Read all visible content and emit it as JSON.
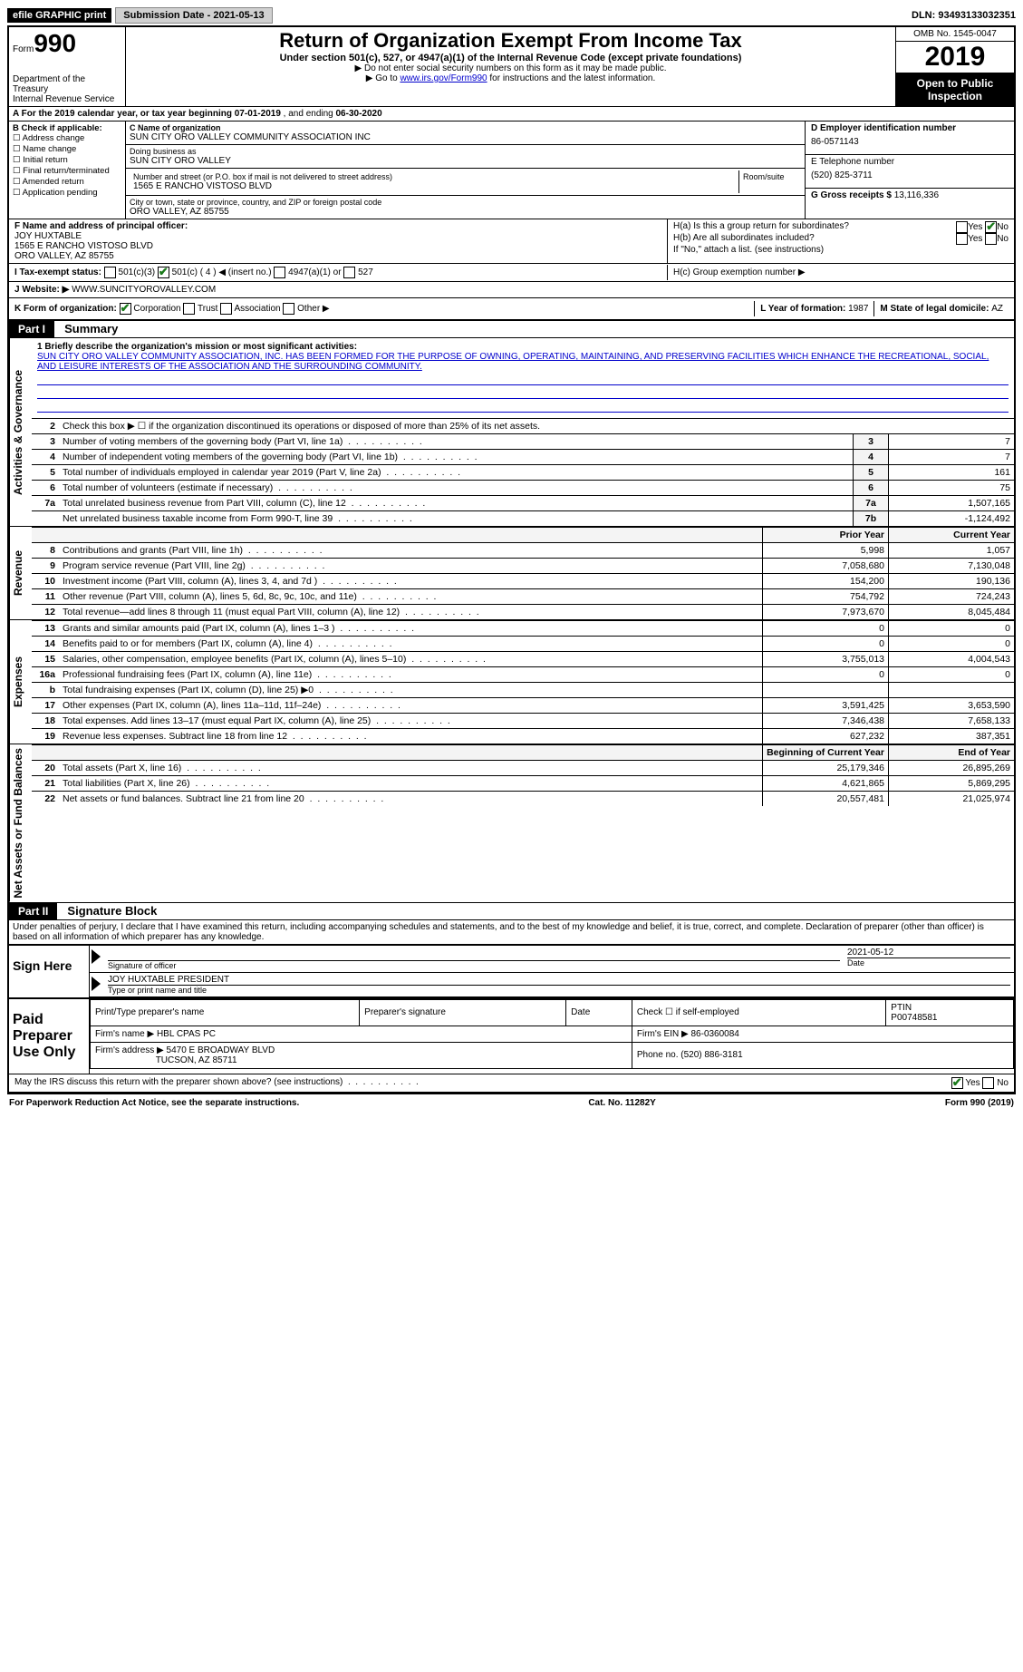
{
  "topbar": {
    "efile": "efile GRAPHIC print",
    "submission_label": "Submission Date - ",
    "submission_date": "2021-05-13",
    "dln_label": "DLN: ",
    "dln": "93493133032351"
  },
  "header": {
    "form_word": "Form",
    "form_num": "990",
    "dept": "Department of the Treasury\nInternal Revenue Service",
    "title": "Return of Organization Exempt From Income Tax",
    "subtitle": "Under section 501(c), 527, or 4947(a)(1) of the Internal Revenue Code (except private foundations)",
    "line1": "▶ Do not enter social security numbers on this form as it may be made public.",
    "line2a": "▶ Go to ",
    "line2_link": "www.irs.gov/Form990",
    "line2b": " for instructions and the latest information.",
    "omb": "OMB No. 1545-0047",
    "year": "2019",
    "open": "Open to Public Inspection"
  },
  "rowA": {
    "prefix": "A   For the 2019 calendar year, or tax year beginning ",
    "begin": "07-01-2019",
    "mid": "   , and ending ",
    "end": "06-30-2020"
  },
  "colB": {
    "title": "B Check if applicable:",
    "items": [
      "Address change",
      "Name change",
      "Initial return",
      "Final return/terminated",
      "Amended return",
      "Application pending"
    ]
  },
  "colC": {
    "name_lbl": "C Name of organization",
    "name": "SUN CITY ORO VALLEY COMMUNITY ASSOCIATION INC",
    "dba_lbl": "Doing business as",
    "dba": "SUN CITY ORO VALLEY",
    "addr_lbl": "Number and street (or P.O. box if mail is not delivered to street address)",
    "addr": "1565 E RANCHO VISTOSO BLVD",
    "room_lbl": "Room/suite",
    "city_lbl": "City or town, state or province, country, and ZIP or foreign postal code",
    "city": "ORO VALLEY, AZ  85755"
  },
  "colDE": {
    "d_lbl": "D Employer identification number",
    "ein": "86-0571143",
    "e_lbl": "E Telephone number",
    "phone": "(520) 825-3711",
    "g_lbl": "G Gross receipts $ ",
    "gross": "13,116,336"
  },
  "rowF": {
    "f_lbl": "F Name and address of principal officer:",
    "name": "JOY HUXTABLE",
    "addr1": "1565 E RANCHO VISTOSO BLVD",
    "addr2": "ORO VALLEY, AZ  85755",
    "ha": "H(a)  Is this a group return for subordinates?",
    "hb": "H(b)  Are all subordinates included?",
    "hb_note": "If \"No,\" attach a list. (see instructions)",
    "yes": "Yes",
    "no": "No"
  },
  "rowI": {
    "lbl": "I   Tax-exempt status:",
    "o1": "501(c)(3)",
    "o2_a": "501(c) ( ",
    "o2_num": "4",
    "o2_b": " ) ◀ (insert no.)",
    "o3": "4947(a)(1) or",
    "o4": "527",
    "hc": "H(c)  Group exemption number ▶"
  },
  "rowJ": {
    "lbl": "J   Website: ▶ ",
    "val": "WWW.SUNCITYOROVALLEY.COM"
  },
  "rowK": {
    "lbl": "K Form of organization:",
    "o1": "Corporation",
    "o2": "Trust",
    "o3": "Association",
    "o4": "Other ▶",
    "l_lbl": "L Year of formation: ",
    "l_val": "1987",
    "m_lbl": "M State of legal domicile: ",
    "m_val": "AZ"
  },
  "part1_hdr": "Part I",
  "part1_title": "Summary",
  "govern": {
    "label": "Activities & Governance",
    "l1_lbl": "1   Briefly describe the organization's mission or most significant activities:",
    "l1_txt": "SUN CITY ORO VALLEY COMMUNITY ASSOCIATION, INC. HAS BEEN FORMED FOR THE PURPOSE OF OWNING, OPERATING, MAINTAINING, AND PRESERVING FACILITIES WHICH ENHANCE THE RECREATIONAL, SOCIAL, AND LEISURE INTERESTS OF THE ASSOCIATION AND THE SURROUNDING COMMUNITY.",
    "l2": "Check this box ▶ ☐ if the organization discontinued its operations or disposed of more than 25% of its net assets.",
    "rows": [
      {
        "n": "3",
        "t": "Number of voting members of the governing body (Part VI, line 1a)",
        "k": "3",
        "v": "7"
      },
      {
        "n": "4",
        "t": "Number of independent voting members of the governing body (Part VI, line 1b)",
        "k": "4",
        "v": "7"
      },
      {
        "n": "5",
        "t": "Total number of individuals employed in calendar year 2019 (Part V, line 2a)",
        "k": "5",
        "v": "161"
      },
      {
        "n": "6",
        "t": "Total number of volunteers (estimate if necessary)",
        "k": "6",
        "v": "75"
      },
      {
        "n": "7a",
        "t": "Total unrelated business revenue from Part VIII, column (C), line 12",
        "k": "7a",
        "v": "1,507,165"
      },
      {
        "n": "",
        "t": "Net unrelated business taxable income from Form 990-T, line 39",
        "k": "7b",
        "v": "-1,124,492"
      }
    ]
  },
  "col_hdr": {
    "prior": "Prior Year",
    "current": "Current Year"
  },
  "revenue": {
    "label": "Revenue",
    "rows": [
      {
        "n": "8",
        "t": "Contributions and grants (Part VIII, line 1h)",
        "p": "5,998",
        "c": "1,057"
      },
      {
        "n": "9",
        "t": "Program service revenue (Part VIII, line 2g)",
        "p": "7,058,680",
        "c": "7,130,048"
      },
      {
        "n": "10",
        "t": "Investment income (Part VIII, column (A), lines 3, 4, and 7d )",
        "p": "154,200",
        "c": "190,136"
      },
      {
        "n": "11",
        "t": "Other revenue (Part VIII, column (A), lines 5, 6d, 8c, 9c, 10c, and 11e)",
        "p": "754,792",
        "c": "724,243"
      },
      {
        "n": "12",
        "t": "Total revenue—add lines 8 through 11 (must equal Part VIII, column (A), line 12)",
        "p": "7,973,670",
        "c": "8,045,484"
      }
    ]
  },
  "expenses": {
    "label": "Expenses",
    "rows": [
      {
        "n": "13",
        "t": "Grants and similar amounts paid (Part IX, column (A), lines 1–3 )",
        "p": "0",
        "c": "0"
      },
      {
        "n": "14",
        "t": "Benefits paid to or for members (Part IX, column (A), line 4)",
        "p": "0",
        "c": "0"
      },
      {
        "n": "15",
        "t": "Salaries, other compensation, employee benefits (Part IX, column (A), lines 5–10)",
        "p": "3,755,013",
        "c": "4,004,543"
      },
      {
        "n": "16a",
        "t": "Professional fundraising fees (Part IX, column (A), line 11e)",
        "p": "0",
        "c": "0"
      },
      {
        "n": "b",
        "t": "Total fundraising expenses (Part IX, column (D), line 25) ▶0",
        "p": "",
        "c": ""
      },
      {
        "n": "17",
        "t": "Other expenses (Part IX, column (A), lines 11a–11d, 11f–24e)",
        "p": "3,591,425",
        "c": "3,653,590"
      },
      {
        "n": "18",
        "t": "Total expenses. Add lines 13–17 (must equal Part IX, column (A), line 25)",
        "p": "7,346,438",
        "c": "7,658,133"
      },
      {
        "n": "19",
        "t": "Revenue less expenses. Subtract line 18 from line 12",
        "p": "627,232",
        "c": "387,351"
      }
    ]
  },
  "netassets": {
    "label": "Net Assets or Fund Balances",
    "hdr_p": "Beginning of Current Year",
    "hdr_c": "End of Year",
    "rows": [
      {
        "n": "20",
        "t": "Total assets (Part X, line 16)",
        "p": "25,179,346",
        "c": "26,895,269"
      },
      {
        "n": "21",
        "t": "Total liabilities (Part X, line 26)",
        "p": "4,621,865",
        "c": "5,869,295"
      },
      {
        "n": "22",
        "t": "Net assets or fund balances. Subtract line 21 from line 20",
        "p": "20,557,481",
        "c": "21,025,974"
      }
    ]
  },
  "part2_hdr": "Part II",
  "part2_title": "Signature Block",
  "penalties": "Under penalties of perjury, I declare that I have examined this return, including accompanying schedules and statements, and to the best of my knowledge and belief, it is true, correct, and complete. Declaration of preparer (other than officer) is based on all information of which preparer has any knowledge.",
  "sign": {
    "here": "Sign Here",
    "sig_lbl": "Signature of officer",
    "date": "2021-05-12",
    "date_lbl": "Date",
    "name": "JOY HUXTABLE  PRESIDENT",
    "name_lbl": "Type or print name and title"
  },
  "prep": {
    "title": "Paid Preparer Use Only",
    "h1": "Print/Type preparer's name",
    "h2": "Preparer's signature",
    "h3": "Date",
    "h4_a": "Check ☐ if self-employed",
    "h4_b": "PTIN",
    "ptin": "P00748581",
    "firm_lbl": "Firm's name   ▶ ",
    "firm": "HBL CPAS PC",
    "ein_lbl": "Firm's EIN ▶ ",
    "ein": "86-0360084",
    "addr_lbl": "Firm's address ▶ ",
    "addr1": "5470 E BROADWAY BLVD",
    "addr2": "TUCSON, AZ  85711",
    "phone_lbl": "Phone no. ",
    "phone": "(520) 886-3181"
  },
  "discuss": {
    "q": "May the IRS discuss this return with the preparer shown above? (see instructions)",
    "yes": "Yes",
    "no": "No"
  },
  "footer": {
    "left": "For Paperwork Reduction Act Notice, see the separate instructions.",
    "mid": "Cat. No. 11282Y",
    "right": "Form 990 (2019)"
  }
}
